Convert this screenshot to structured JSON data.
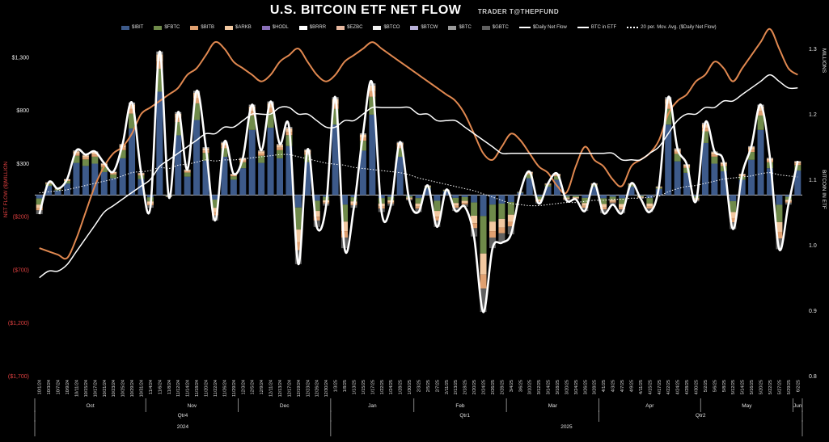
{
  "header": {
    "title": "U.S. BITCOIN ETF NET FLOW",
    "subtitle": "TRADER T@THEPFUND"
  },
  "colors": {
    "IBIT": "#3d5a8a",
    "FBTC": "#6f8a4a",
    "BITB": "#e0a070",
    "ARKB": "#f2c8a0",
    "HODL": "#8a70b8",
    "BRRR": "#ffffff",
    "EZBC": "#e8b8a0",
    "BTCO": "#f0f0f0",
    "BTCW": "#b8b0d8",
    "BTC": "#9a9a9a",
    "GBTC": "#606060",
    "daily_line": "#ffffff",
    "btc_in_etf": "#e08850",
    "ma_line": "#ffffff",
    "btc_price": "#ffffff",
    "negative_tick": "#e04040"
  },
  "chart_data": {
    "type": "bar",
    "legend": [
      {
        "key": "IBIT",
        "label": "$IBIT",
        "kind": "bar"
      },
      {
        "key": "FBTC",
        "label": "$FBTC",
        "kind": "bar"
      },
      {
        "key": "BITB",
        "label": "$BITB",
        "kind": "bar"
      },
      {
        "key": "ARKB",
        "label": "$ARKB",
        "kind": "bar"
      },
      {
        "key": "HODL",
        "label": "$HODL",
        "kind": "bar"
      },
      {
        "key": "BRRR",
        "label": "$BRRR",
        "kind": "bar"
      },
      {
        "key": "EZBC",
        "label": "$EZBC",
        "kind": "bar"
      },
      {
        "key": "BTCO",
        "label": "$BTCO",
        "kind": "bar"
      },
      {
        "key": "BTCW",
        "label": "$BTCW",
        "kind": "bar"
      },
      {
        "key": "BTC",
        "label": "$BTC",
        "kind": "bar"
      },
      {
        "key": "GBTC",
        "label": "$GBTC",
        "kind": "bar"
      },
      {
        "key": "daily",
        "label": "$Daily Net Flow",
        "kind": "line"
      },
      {
        "key": "btcetf",
        "label": "BTC in ETF",
        "kind": "line"
      },
      {
        "key": "ma",
        "label": "20 per. Mov. Avg. ($Daily Net Flow)",
        "kind": "dotted"
      }
    ],
    "ylabel_left": "NET FLOW ($)MILLION",
    "ylabel_right": "BITCOIN IN ETF",
    "ylabel_right_top": "MILLIONS",
    "yaxis_left": {
      "min": -1700,
      "max": 1500,
      "ticks": [
        {
          "value": 1300,
          "label": "$1,300"
        },
        {
          "value": 800,
          "label": "$800"
        },
        {
          "value": 300,
          "label": "$300"
        },
        {
          "value": -200,
          "label": "($200)"
        },
        {
          "value": -700,
          "label": "($700)"
        },
        {
          "value": -1200,
          "label": "($1,200)"
        },
        {
          "value": -1700,
          "label": "($1,700)"
        }
      ]
    },
    "yaxis_right": {
      "min": 0.8,
      "max": 1.32,
      "ticks": [
        {
          "value": 1.3,
          "label": "1.3"
        },
        {
          "value": 1.2,
          "label": "1.2"
        },
        {
          "value": 1.1,
          "label": "1.1"
        },
        {
          "value": 1.0,
          "label": "1.0"
        },
        {
          "value": 0.9,
          "label": "0.9"
        },
        {
          "value": 0.8,
          "label": "0.8"
        }
      ]
    },
    "x_dates": [
      "10/1/24",
      "10/3/24",
      "10/7/24",
      "10/9/24",
      "10/11/24",
      "10/15/24",
      "10/17/24",
      "10/21/24",
      "10/23/24",
      "10/25/24",
      "10/29/24",
      "10/31/24",
      "11/4/24",
      "11/6/24",
      "11/8/24",
      "11/12/24",
      "11/14/24",
      "11/18/24",
      "11/20/24",
      "11/22/24",
      "11/26/24",
      "11/29/24",
      "12/3/24",
      "12/5/24",
      "12/9/24",
      "12/11/24",
      "12/13/24",
      "12/17/24",
      "12/19/24",
      "12/23/24",
      "12/26/24",
      "12/30/24",
      "1/3/25",
      "1/8/25",
      "1/13/25",
      "1/15/25",
      "1/17/25",
      "1/22/25",
      "1/24/25",
      "1/28/25",
      "1/30/25",
      "2/3/25",
      "2/5/25",
      "2/7/25",
      "2/11/25",
      "2/13/25",
      "2/18/25",
      "2/20/25",
      "2/24/25",
      "2/26/25",
      "2/28/25",
      "3/4/25",
      "3/6/25",
      "3/10/25",
      "3/12/25",
      "3/14/25",
      "3/18/25",
      "3/20/25",
      "3/24/25",
      "3/26/25",
      "3/28/25",
      "4/1/25",
      "4/3/25",
      "4/7/25",
      "4/9/25",
      "4/11/25",
      "4/15/25",
      "4/17/25",
      "4/22/25",
      "4/24/25",
      "4/28/25",
      "4/30/25",
      "5/2/25",
      "5/6/25",
      "5/8/25",
      "5/12/25",
      "5/14/25",
      "5/16/25",
      "5/20/25",
      "5/22/25",
      "5/27/25",
      "5/29/25",
      "6/2/25"
    ],
    "months": [
      {
        "label": "Oct",
        "from": "10/1/24",
        "to": "10/31/24"
      },
      {
        "label": "Nov",
        "from": "11/4/24",
        "to": "11/29/24"
      },
      {
        "label": "Dec",
        "from": "12/3/24",
        "to": "12/30/24"
      },
      {
        "label": "Jan",
        "from": "1/3/25",
        "to": "1/30/25"
      },
      {
        "label": "Feb",
        "from": "2/3/25",
        "to": "2/28/25"
      },
      {
        "label": "Mar",
        "from": "3/4/25",
        "to": "3/28/25"
      },
      {
        "label": "Apr",
        "from": "4/1/25",
        "to": "4/30/25"
      },
      {
        "label": "May",
        "from": "5/2/25",
        "to": "5/29/25"
      },
      {
        "label": "Jun",
        "from": "6/2/25",
        "to": "6/2/25"
      }
    ],
    "quarters": [
      {
        "label": "Qtr4",
        "from": "10/1/24",
        "to": "12/30/24"
      },
      {
        "label": "Qtr1",
        "from": "1/3/25",
        "to": "3/28/25"
      },
      {
        "label": "Qtr2",
        "from": "4/1/25",
        "to": "6/2/25"
      }
    ],
    "years": [
      {
        "label": "2024",
        "from": "10/1/24",
        "to": "12/30/24"
      },
      {
        "label": "2025",
        "from": "1/3/25",
        "to": "6/2/25"
      }
    ],
    "daily_net_flow": [
      -180,
      120,
      60,
      150,
      420,
      380,
      410,
      300,
      220,
      480,
      870,
      210,
      -120,
      1350,
      -20,
      780,
      240,
      980,
      450,
      -240,
      500,
      200,
      350,
      850,
      420,
      880,
      480,
      640,
      -650,
      430,
      -300,
      -100,
      920,
      -500,
      -120,
      580,
      1050,
      -160,
      -100,
      500,
      -50,
      -160,
      90,
      -300,
      50,
      -150,
      -110,
      -390,
      -1100,
      -500,
      -450,
      -370,
      30,
      220,
      -80,
      110,
      200,
      -50,
      -40,
      -150,
      110,
      -170,
      -90,
      -170,
      110,
      -30,
      -160,
      80,
      920,
      440,
      290,
      -60,
      680,
      410,
      310,
      -320,
      200,
      460,
      850,
      350,
      -510,
      -90,
      320
    ],
    "btc_in_etf": [
      0.995,
      0.99,
      0.985,
      0.98,
      1.01,
      1.05,
      1.09,
      1.12,
      1.14,
      1.15,
      1.17,
      1.2,
      1.21,
      1.22,
      1.23,
      1.24,
      1.26,
      1.27,
      1.29,
      1.31,
      1.3,
      1.28,
      1.27,
      1.26,
      1.25,
      1.26,
      1.28,
      1.29,
      1.3,
      1.28,
      1.26,
      1.25,
      1.26,
      1.28,
      1.29,
      1.3,
      1.31,
      1.3,
      1.29,
      1.28,
      1.27,
      1.26,
      1.25,
      1.24,
      1.23,
      1.22,
      1.2,
      1.17,
      1.14,
      1.13,
      1.15,
      1.17,
      1.16,
      1.14,
      1.12,
      1.11,
      1.09,
      1.08,
      1.12,
      1.15,
      1.13,
      1.12,
      1.1,
      1.09,
      1.12,
      1.13,
      1.14,
      1.16,
      1.2,
      1.22,
      1.23,
      1.25,
      1.26,
      1.28,
      1.27,
      1.25,
      1.27,
      1.29,
      1.31,
      1.33,
      1.3,
      1.27,
      1.26
    ],
    "btc_price_millions": [
      0.95,
      0.96,
      0.96,
      0.97,
      0.99,
      1.01,
      1.03,
      1.05,
      1.06,
      1.07,
      1.08,
      1.09,
      1.1,
      1.12,
      1.13,
      1.14,
      1.15,
      1.16,
      1.17,
      1.17,
      1.18,
      1.18,
      1.19,
      1.2,
      1.2,
      1.2,
      1.21,
      1.21,
      1.2,
      1.2,
      1.19,
      1.18,
      1.18,
      1.19,
      1.19,
      1.2,
      1.21,
      1.21,
      1.21,
      1.21,
      1.21,
      1.2,
      1.2,
      1.19,
      1.19,
      1.19,
      1.18,
      1.17,
      1.16,
      1.15,
      1.14,
      1.14,
      1.14,
      1.14,
      1.14,
      1.14,
      1.14,
      1.14,
      1.14,
      1.14,
      1.14,
      1.14,
      1.14,
      1.13,
      1.13,
      1.13,
      1.14,
      1.15,
      1.17,
      1.19,
      1.2,
      1.2,
      1.21,
      1.21,
      1.22,
      1.22,
      1.23,
      1.24,
      1.25,
      1.26,
      1.25,
      1.24,
      1.24
    ],
    "ma20_net_flow": [
      20,
      30,
      40,
      50,
      70,
      90,
      110,
      130,
      150,
      180,
      210,
      220,
      230,
      260,
      250,
      280,
      290,
      310,
      330,
      320,
      330,
      330,
      340,
      350,
      360,
      370,
      380,
      380,
      360,
      340,
      320,
      300,
      290,
      280,
      260,
      250,
      240,
      230,
      220,
      210,
      190,
      160,
      140,
      120,
      100,
      80,
      60,
      40,
      10,
      -20,
      -50,
      -80,
      -90,
      -100,
      -100,
      -90,
      -80,
      -70,
      -70,
      -60,
      -50,
      -50,
      -40,
      -40,
      -30,
      -30,
      -20,
      -10,
      30,
      60,
      80,
      90,
      110,
      130,
      150,
      160,
      170,
      180,
      200,
      210,
      190,
      180,
      170
    ]
  }
}
